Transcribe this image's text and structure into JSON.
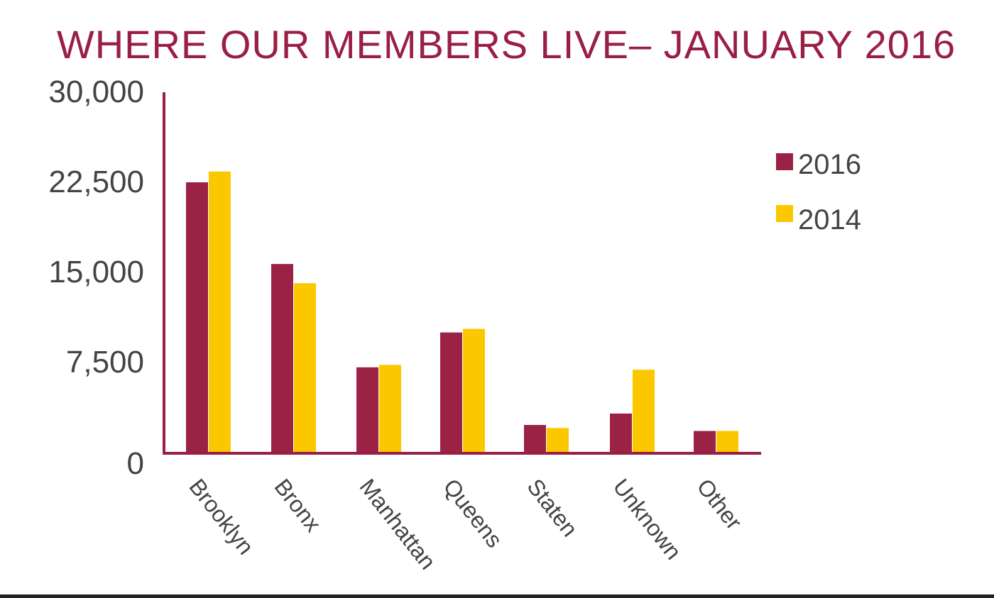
{
  "colors": {
    "series_2016": "#9a2245",
    "series_2014": "#fbc800",
    "axis": "#9a1f45",
    "title": "#9a1f45",
    "text": "#444444"
  },
  "chart_data": {
    "type": "bar",
    "title": "WHERE OUR MEMBERS LIVE– JANUARY 2016",
    "xlabel": "",
    "ylabel": "",
    "ylim": [
      0,
      30000
    ],
    "yticks": [
      0,
      7500,
      15000,
      22500,
      30000
    ],
    "ytick_labels": [
      "0",
      "7,500",
      "15,000",
      "22,500",
      "30,000"
    ],
    "grid": false,
    "legend_position": "right",
    "categories": [
      "Brooklyn",
      "Bronx",
      "Manhattan",
      "Queens",
      "Staten",
      "Unknown",
      "Other"
    ],
    "series": [
      {
        "name": "2016",
        "color": "#9a2245",
        "values": [
          22500,
          15700,
          7100,
          10000,
          2300,
          3250,
          1800
        ]
      },
      {
        "name": "2014",
        "color": "#fbc800",
        "values": [
          23400,
          14100,
          7300,
          10300,
          2050,
          6900,
          1800
        ]
      }
    ]
  }
}
